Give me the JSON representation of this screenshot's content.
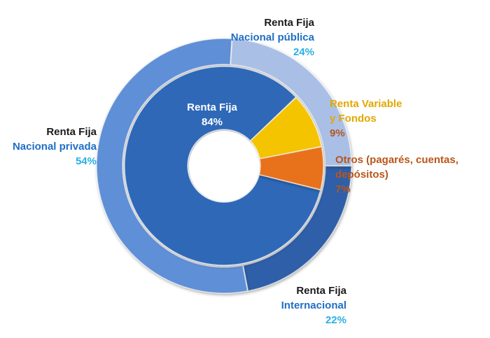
{
  "chart_data": {
    "type": "pie",
    "title": "",
    "inner_ring": {
      "slices": [
        {
          "label_lines": [
            "Renta Fija"
          ],
          "value": 84,
          "value_text": "84%",
          "color": "#2f67b7"
        },
        {
          "label_lines": [
            "Renta Variable",
            "y Fondos"
          ],
          "value": 9,
          "value_text": "9%",
          "color": "#f5c400"
        },
        {
          "label_lines": [
            "Otros (pagarés, cuentas,",
            "depósitos)"
          ],
          "value": 7,
          "value_text": "7%",
          "color": "#e8711a"
        }
      ]
    },
    "outer_ring": {
      "slices": [
        {
          "label_lines": [
            "Renta Fija",
            "Internacional"
          ],
          "value": 22,
          "value_text": "22%",
          "color": "#2f5fa8"
        },
        {
          "label_lines": [
            "Renta Fija",
            "Nacional privada"
          ],
          "value": 54,
          "value_text": "54%",
          "color": "#5f8fd6"
        },
        {
          "label_lines": [
            "Renta Fija",
            "Nacional pública"
          ],
          "value": 24,
          "value_text": "24%",
          "color": "#a9bfe6"
        }
      ]
    }
  },
  "colors": {
    "title_text": "#1a1a1a",
    "subtitle_blue": "#1f6fc5",
    "pct_cyan": "#2ab0e6",
    "rv_text": "#e0a800",
    "otros_text": "#b8561a",
    "inner_white": "#ffffff"
  }
}
